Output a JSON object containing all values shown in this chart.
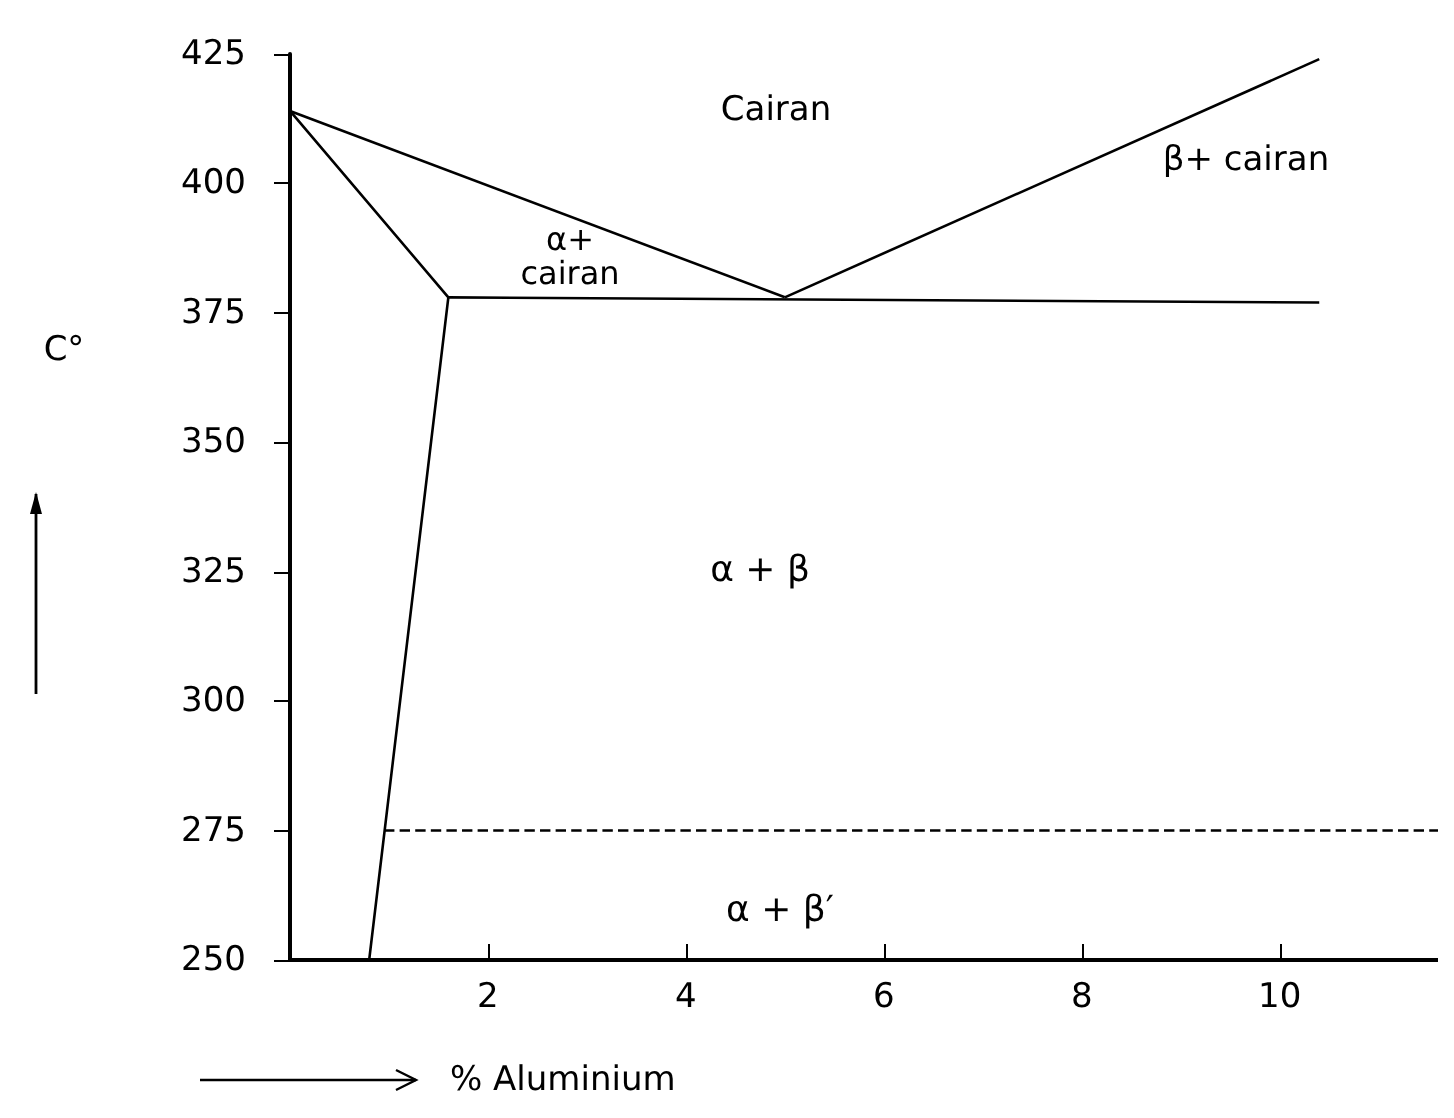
{
  "chart_data": {
    "type": "line",
    "xlabel": "% Aluminium",
    "ylabel": "C°",
    "xlim": [
      0,
      11.6
    ],
    "xticks": [
      2,
      4,
      6,
      8,
      10
    ],
    "ylim": [
      250,
      425
    ],
    "yticks": [
      250,
      275,
      300,
      325,
      350,
      375,
      400,
      425
    ],
    "grid": false,
    "marker": "none",
    "line_style": "solid",
    "series": [
      {
        "color": "#000000",
        "x": [
          0,
          5
        ],
        "values": [
          414,
          378
        ]
      },
      {
        "color": "#000000",
        "x": [
          5,
          10.4
        ],
        "values": [
          378,
          424
        ]
      },
      {
        "color": "#000000",
        "x": [
          0,
          1.6,
          0.8
        ],
        "values": [
          414,
          378,
          250
        ]
      },
      {
        "color": "#000000",
        "x": [
          1.6,
          10.4
        ],
        "values": [
          378,
          377
        ]
      },
      {
        "color": "#000000",
        "x": [
          0.95,
          11.6
        ],
        "values": [
          275,
          275
        ],
        "line_style": "dashed"
      }
    ],
    "annotations": [
      "Cairan",
      "α+\ncairan",
      "β+ cairan",
      "α + β",
      "α + β′"
    ]
  }
}
